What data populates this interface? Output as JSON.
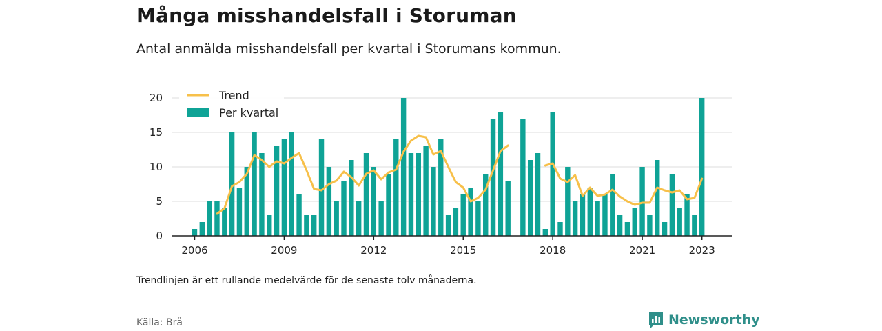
{
  "header": {
    "title": "Många misshandelsfall i Storuman",
    "subtitle": "Antal anmälda misshandelsfall per kvartal i Storumans kommun."
  },
  "footer": {
    "note": "Trendlinjen är ett rullande medelvärde för de senaste tolv månaderna.",
    "source": "Källa: Brå",
    "brand": "Newsworthy",
    "brand_icon": "bar-chart-icon"
  },
  "colors": {
    "bar": "#0fa396",
    "trend": "#f7c04a",
    "grid": "#dddddd",
    "axis": "#222222",
    "brand": "#2f8f8a"
  },
  "chart_data": {
    "type": "bar",
    "xlabel": "",
    "ylabel": "",
    "ylim": [
      0,
      20
    ],
    "y_ticks": [
      0,
      5,
      10,
      15,
      20
    ],
    "x_range": [
      2005.25,
      2024.0
    ],
    "x_ticks": [
      2006,
      2009,
      2012,
      2015,
      2018,
      2021,
      2023
    ],
    "grid": true,
    "legend": {
      "position": "top-left",
      "entries": [
        "Trend",
        "Per kvartal"
      ]
    },
    "series": [
      {
        "name": "Per kvartal",
        "type": "bar",
        "points": [
          [
            "2006-Q1",
            1
          ],
          [
            "2006-Q2",
            2
          ],
          [
            "2006-Q3",
            5
          ],
          [
            "2006-Q4",
            5
          ],
          [
            "2007-Q1",
            4
          ],
          [
            "2007-Q2",
            15
          ],
          [
            "2007-Q3",
            7
          ],
          [
            "2007-Q4",
            10
          ],
          [
            "2008-Q1",
            15
          ],
          [
            "2008-Q2",
            12
          ],
          [
            "2008-Q3",
            3
          ],
          [
            "2008-Q4",
            13
          ],
          [
            "2009-Q1",
            14
          ],
          [
            "2009-Q2",
            15
          ],
          [
            "2009-Q3",
            6
          ],
          [
            "2009-Q4",
            3
          ],
          [
            "2010-Q1",
            3
          ],
          [
            "2010-Q2",
            14
          ],
          [
            "2010-Q3",
            10
          ],
          [
            "2010-Q4",
            5
          ],
          [
            "2011-Q1",
            8
          ],
          [
            "2011-Q2",
            11
          ],
          [
            "2011-Q3",
            5
          ],
          [
            "2011-Q4",
            12
          ],
          [
            "2012-Q1",
            10
          ],
          [
            "2012-Q2",
            5
          ],
          [
            "2012-Q3",
            9
          ],
          [
            "2012-Q4",
            14
          ],
          [
            "2013-Q1",
            20
          ],
          [
            "2013-Q2",
            12
          ],
          [
            "2013-Q3",
            12
          ],
          [
            "2013-Q4",
            13
          ],
          [
            "2014-Q1",
            10
          ],
          [
            "2014-Q2",
            14
          ],
          [
            "2014-Q3",
            3
          ],
          [
            "2014-Q4",
            4
          ],
          [
            "2015-Q1",
            6
          ],
          [
            "2015-Q2",
            7
          ],
          [
            "2015-Q3",
            5
          ],
          [
            "2015-Q4",
            9
          ],
          [
            "2016-Q1",
            17
          ],
          [
            "2016-Q2",
            18
          ],
          [
            "2016-Q3",
            8
          ],
          [
            "2017-Q1",
            17
          ],
          [
            "2017-Q2",
            11
          ],
          [
            "2017-Q3",
            12
          ],
          [
            "2017-Q4",
            1
          ],
          [
            "2018-Q1",
            18
          ],
          [
            "2018-Q2",
            2
          ],
          [
            "2018-Q3",
            10
          ],
          [
            "2018-Q4",
            5
          ],
          [
            "2019-Q1",
            6
          ],
          [
            "2019-Q2",
            7
          ],
          [
            "2019-Q3",
            5
          ],
          [
            "2019-Q4",
            6
          ],
          [
            "2020-Q1",
            9
          ],
          [
            "2020-Q2",
            3
          ],
          [
            "2020-Q3",
            2
          ],
          [
            "2020-Q4",
            4
          ],
          [
            "2021-Q1",
            10
          ],
          [
            "2021-Q2",
            3
          ],
          [
            "2021-Q3",
            11
          ],
          [
            "2021-Q4",
            2
          ],
          [
            "2022-Q1",
            9
          ],
          [
            "2022-Q2",
            4
          ],
          [
            "2022-Q3",
            6
          ],
          [
            "2022-Q4",
            3
          ],
          [
            "2023-Q1",
            20
          ]
        ]
      },
      {
        "name": "Trend",
        "type": "line",
        "segments": [
          [
            [
              "2006-Q4",
              3.2
            ],
            [
              "2007-Q1",
              4.0
            ],
            [
              "2007-Q2",
              7.2
            ],
            [
              "2007-Q3",
              7.8
            ],
            [
              "2007-Q4",
              9.0
            ],
            [
              "2008-Q1",
              11.7
            ],
            [
              "2008-Q2",
              11.0
            ],
            [
              "2008-Q3",
              10.0
            ],
            [
              "2008-Q4",
              10.8
            ],
            [
              "2009-Q1",
              10.5
            ],
            [
              "2009-Q2",
              11.3
            ],
            [
              "2009-Q3",
              12.0
            ],
            [
              "2009-Q4",
              9.5
            ],
            [
              "2010-Q1",
              6.8
            ],
            [
              "2010-Q2",
              6.6
            ],
            [
              "2010-Q3",
              7.5
            ],
            [
              "2010-Q4",
              8.0
            ],
            [
              "2011-Q1",
              9.3
            ],
            [
              "2011-Q2",
              8.5
            ],
            [
              "2011-Q3",
              7.3
            ],
            [
              "2011-Q4",
              9.0
            ],
            [
              "2012-Q1",
              9.5
            ],
            [
              "2012-Q2",
              8.2
            ],
            [
              "2012-Q3",
              9.2
            ],
            [
              "2012-Q4",
              9.6
            ],
            [
              "2013-Q1",
              12.2
            ],
            [
              "2013-Q2",
              13.8
            ],
            [
              "2013-Q3",
              14.5
            ],
            [
              "2013-Q4",
              14.3
            ],
            [
              "2014-Q1",
              11.8
            ],
            [
              "2014-Q2",
              12.3
            ],
            [
              "2014-Q3",
              10.0
            ],
            [
              "2014-Q4",
              7.8
            ],
            [
              "2015-Q1",
              7.0
            ],
            [
              "2015-Q2",
              5.0
            ],
            [
              "2015-Q3",
              5.5
            ],
            [
              "2015-Q4",
              6.7
            ],
            [
              "2016-Q1",
              9.5
            ],
            [
              "2016-Q2",
              12.3
            ],
            [
              "2016-Q3",
              13.1
            ]
          ],
          [
            [
              "2017-Q4",
              10.2
            ],
            [
              "2018-Q1",
              10.5
            ],
            [
              "2018-Q2",
              8.3
            ],
            [
              "2018-Q3",
              7.8
            ],
            [
              "2018-Q4",
              8.8
            ],
            [
              "2019-Q1",
              5.8
            ],
            [
              "2019-Q2",
              7.0
            ],
            [
              "2019-Q3",
              5.8
            ],
            [
              "2019-Q4",
              6.0
            ],
            [
              "2020-Q1",
              6.7
            ],
            [
              "2020-Q2",
              5.7
            ],
            [
              "2020-Q3",
              5.0
            ],
            [
              "2020-Q4",
              4.5
            ],
            [
              "2021-Q1",
              4.8
            ],
            [
              "2021-Q2",
              4.8
            ],
            [
              "2021-Q3",
              7.0
            ],
            [
              "2021-Q4",
              6.6
            ],
            [
              "2022-Q1",
              6.3
            ],
            [
              "2022-Q2",
              6.6
            ],
            [
              "2022-Q3",
              5.3
            ],
            [
              "2022-Q4",
              5.5
            ],
            [
              "2023-Q1",
              8.3
            ]
          ]
        ]
      }
    ]
  }
}
